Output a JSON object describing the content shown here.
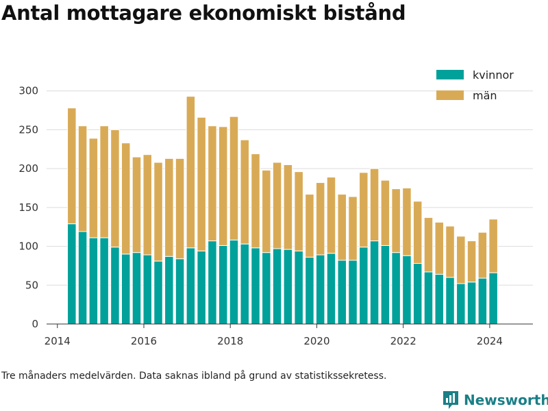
{
  "chart_data": {
    "type": "bar",
    "stacked": true,
    "title": "Antal mottagare ekonomiskt bistånd",
    "xlabel": "",
    "ylabel": "",
    "ylim": [
      0,
      320
    ],
    "yticks": [
      0,
      50,
      100,
      150,
      200,
      250,
      300
    ],
    "xlim": [
      "2013-10",
      "2025-01"
    ],
    "xticks": [
      "2014",
      "2016",
      "2018",
      "2020",
      "2022",
      "2024"
    ],
    "grid": true,
    "legend_position": "top-right",
    "x": [
      "2014-05",
      "2014-08",
      "2014-11",
      "2015-02",
      "2015-05",
      "2015-08",
      "2015-11",
      "2016-02",
      "2016-05",
      "2016-08",
      "2016-11",
      "2017-02",
      "2017-05",
      "2017-08",
      "2017-11",
      "2018-02",
      "2018-05",
      "2018-08",
      "2018-11",
      "2019-02",
      "2019-05",
      "2019-08",
      "2019-11",
      "2020-02",
      "2020-05",
      "2020-08",
      "2020-11",
      "2021-02",
      "2021-05",
      "2021-08",
      "2021-11",
      "2022-02",
      "2022-05",
      "2022-08",
      "2022-11",
      "2023-02",
      "2023-05",
      "2023-08",
      "2023-11",
      "2024-02"
    ],
    "series": [
      {
        "name": "kvinnor",
        "color": "#00a19a",
        "values": [
          129,
          119,
          111,
          111,
          99,
          90,
          92,
          89,
          81,
          87,
          84,
          98,
          94,
          107,
          101,
          108,
          103,
          98,
          92,
          97,
          96,
          94,
          86,
          89,
          91,
          82,
          82,
          99,
          107,
          101,
          92,
          88,
          78,
          67,
          64,
          60,
          52,
          54,
          59,
          66
        ]
      },
      {
        "name": "män",
        "color": "#d9aa56",
        "values": [
          149,
          136,
          128,
          144,
          151,
          143,
          123,
          129,
          127,
          126,
          129,
          195,
          172,
          148,
          153,
          159,
          134,
          121,
          106,
          111,
          109,
          102,
          81,
          93,
          98,
          85,
          82,
          96,
          93,
          84,
          82,
          87,
          80,
          70,
          67,
          66,
          61,
          53,
          59,
          69
        ]
      }
    ]
  },
  "footnote": "Tre månaders medelvärden. Data saknas ibland på grund av statistikssekretess.",
  "brand": {
    "name": "Newsworthy",
    "color": "#1a7f86",
    "icon": "bar-chart-logo-icon"
  }
}
